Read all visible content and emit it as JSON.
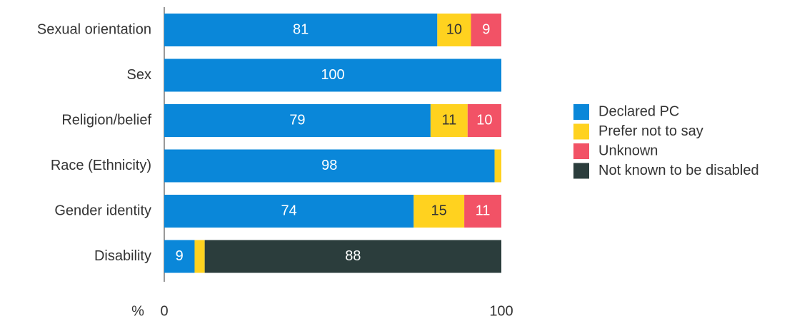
{
  "chart_data": {
    "type": "stacked-bar-horizontal",
    "categories": [
      "Sexual orientation",
      "Sex",
      "Religion/belief",
      "Race (Ethnicity)",
      "Gender identity",
      "Disability"
    ],
    "series": [
      {
        "name": "Declared PC",
        "color": "#0a87d9",
        "values": [
          81,
          100,
          79,
          98,
          74,
          9
        ]
      },
      {
        "name": "Prefer not to say",
        "color": "#ffd21f",
        "values": [
          10,
          0,
          11,
          2,
          15,
          3
        ]
      },
      {
        "name": "Unknown",
        "color": "#f25266",
        "values": [
          9,
          0,
          10,
          0,
          11,
          0
        ]
      },
      {
        "name": "Not known to be disabled",
        "color": "#2b3d3c",
        "values": [
          0,
          0,
          0,
          0,
          0,
          88
        ]
      }
    ],
    "x_label": "%",
    "xlim": [
      0,
      100
    ],
    "xticks": [
      0,
      100
    ]
  }
}
